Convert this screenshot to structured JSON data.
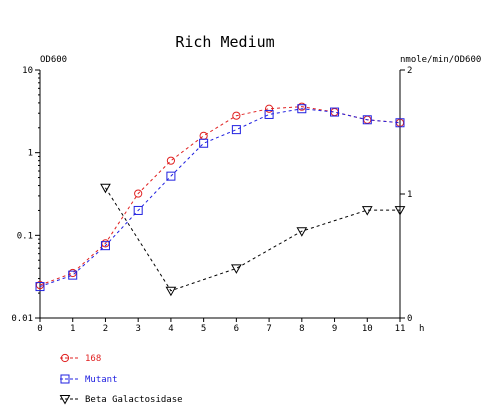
{
  "chart_data": {
    "type": "line",
    "title": "Rich Medium",
    "left_axis": {
      "label": "OD600",
      "scale": "log",
      "ylim": [
        0.01,
        10
      ],
      "ticks": [
        0.01,
        0.1,
        1,
        10
      ],
      "tick_labels": [
        "0.01",
        "0.1",
        "1",
        "10"
      ]
    },
    "right_axis": {
      "label": "nmole/min/OD600",
      "scale": "linear",
      "ylim": [
        0,
        2
      ],
      "ticks": [
        0,
        1,
        2
      ],
      "tick_labels": [
        "0",
        "1",
        "2"
      ]
    },
    "x_axis": {
      "label": "h",
      "xlim": [
        0,
        11
      ],
      "ticks": [
        0,
        1,
        2,
        3,
        4,
        5,
        6,
        7,
        8,
        9,
        10,
        11
      ],
      "tick_labels": [
        "0",
        "1",
        "2",
        "3",
        "4",
        "5",
        "6",
        "7",
        "8",
        "9",
        "10",
        "11"
      ]
    },
    "series": [
      {
        "name": "168",
        "axis": "left",
        "color": "#e02020",
        "marker": "circle",
        "x": [
          0,
          1,
          2,
          3,
          4,
          5,
          6,
          7,
          8,
          9,
          10,
          11
        ],
        "y": [
          0.025,
          0.035,
          0.08,
          0.32,
          0.8,
          1.6,
          2.8,
          3.4,
          3.6,
          3.1,
          2.5,
          2.3
        ]
      },
      {
        "name": "Mutant",
        "axis": "left",
        "color": "#2020e0",
        "marker": "square",
        "x": [
          0,
          1,
          2,
          3,
          4,
          5,
          6,
          7,
          8,
          9,
          10,
          11
        ],
        "y": [
          0.024,
          0.033,
          0.075,
          0.2,
          0.52,
          1.3,
          1.9,
          2.9,
          3.4,
          3.1,
          2.5,
          2.3
        ]
      },
      {
        "name": "Beta Galactosidase",
        "axis": "right",
        "color": "#000000",
        "marker": "triangle-down",
        "x": [
          2,
          4,
          6,
          8,
          10,
          11
        ],
        "y": [
          1.05,
          0.22,
          0.4,
          0.7,
          0.87,
          0.87
        ]
      }
    ],
    "legend_placement": "bottom-left",
    "grid": false
  }
}
